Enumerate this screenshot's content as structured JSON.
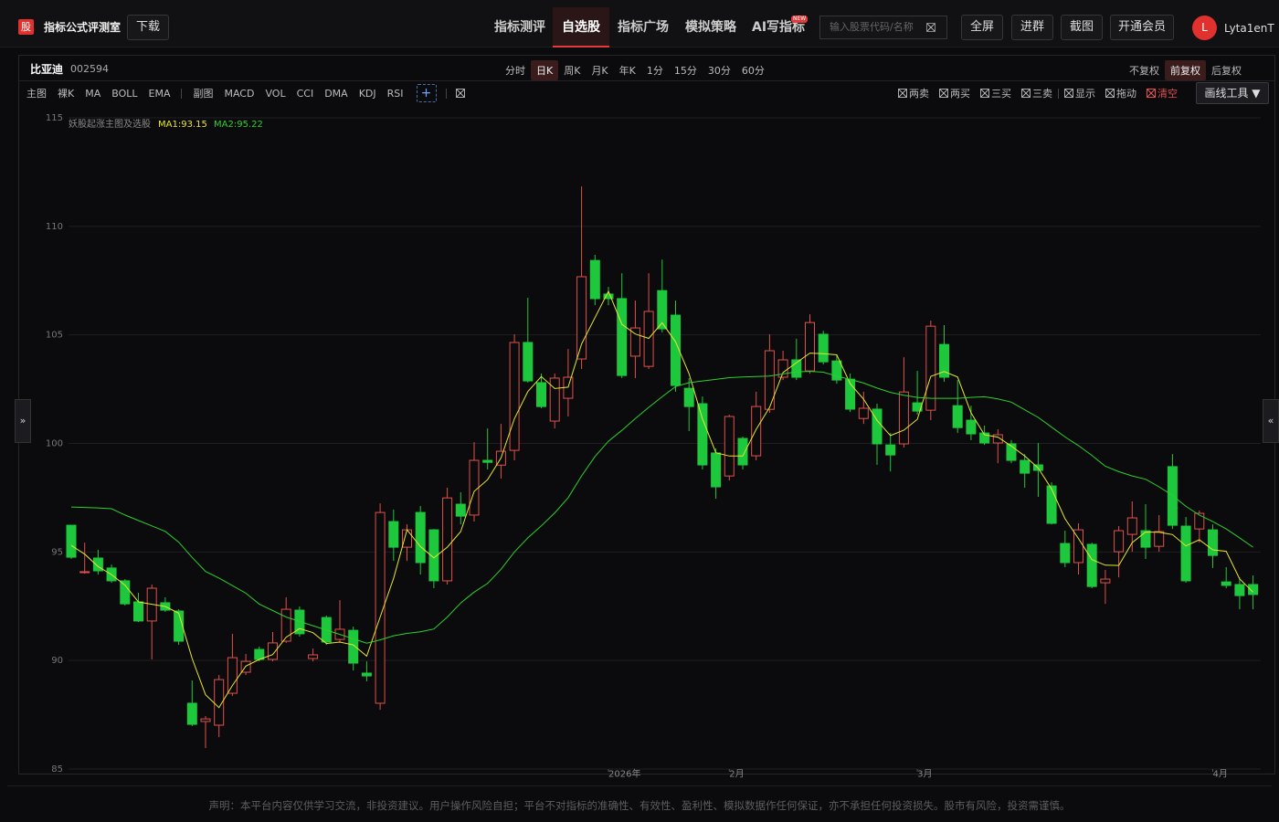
{
  "header": {
    "logo": "股",
    "title": "指标公式评测室",
    "download": "下载",
    "nav": [
      "指标测评",
      "自选股",
      "指标广场",
      "模拟策略",
      "AI写指标"
    ],
    "nav_badge": "NEW",
    "search_placeholder": "输入股票代码/名称",
    "buttons": [
      "全屏",
      "进群",
      "截图",
      "开通会员"
    ],
    "avatar": "L",
    "username": "Lyta1enT"
  },
  "stock": {
    "name": "比亚迪",
    "code": "002594",
    "periods": [
      "分时",
      "日K",
      "周K",
      "月K",
      "年K",
      "1分",
      "15分",
      "30分",
      "60分"
    ],
    "adjust": [
      "不复权",
      "前复权",
      "后复权"
    ]
  },
  "toolbar": {
    "main": [
      "主图",
      "裸K",
      "MA",
      "BOLL",
      "EMA"
    ],
    "sub": [
      "副图",
      "MACD",
      "VOL",
      "CCI",
      "DMA",
      "KDJ",
      "RSI"
    ],
    "add": "+",
    "tools": [
      "两卖",
      "两买",
      "三买",
      "三卖",
      "显示",
      "拖动",
      "清空"
    ],
    "draw_tool": "画线工具 ▼"
  },
  "side": [
    "»",
    "«"
  ],
  "chart_data": {
    "type": "candlestick",
    "indicator": "妖股起涨主图及选股",
    "up_color": "#e0514a",
    "down_color": "#1ec83c",
    "grid": true,
    "ylim": [
      85,
      115
    ],
    "yticks": [
      85,
      90,
      95,
      100,
      105,
      110,
      115
    ],
    "xlim": [
      0,
      88
    ],
    "xticks": [
      {
        "value": 40,
        "label": "2026年"
      },
      {
        "value": 49,
        "label": "2月"
      },
      {
        "value": 63,
        "label": "3月"
      },
      {
        "value": 85,
        "label": "4月"
      }
    ],
    "open": [
      96.23,
      94.09,
      94.72,
      94.26,
      93.67,
      92.7,
      91.82,
      92.66,
      92.28,
      88.03,
      87.19,
      87.02,
      88.49,
      89.46,
      90.51,
      90.05,
      90.89,
      92.32,
      90.09,
      91.98,
      90.97,
      91.39,
      89.42,
      88.03,
      96.4,
      95.22,
      96.82,
      96.02,
      93.67,
      97.2,
      96.7,
      99.22,
      99.0,
      99.68,
      104.65,
      102.8,
      101.03,
      102.08,
      103.89,
      108.43,
      106.88,
      106.67,
      104.02,
      103.55,
      107.04,
      105.91,
      102.54,
      101.83,
      99.56,
      98.5,
      100.23,
      99.43,
      101.57,
      103.05,
      103.85,
      103.34,
      105.03,
      103.8,
      102.96,
      101.15,
      101.58,
      99.93,
      99.98,
      101.87,
      101.53,
      104.56,
      101.74,
      101.07,
      100.48,
      100.02,
      99.98,
      99.22,
      99.01,
      98.04,
      95.39,
      94.51,
      95.35,
      93.58,
      95.01,
      95.81,
      95.98,
      95.26,
      98.93,
      96.19,
      96.06,
      96.02,
      93.62,
      93.5,
      93.5
    ],
    "high": [
      96.23,
      95.43,
      95.1,
      94.42,
      93.75,
      93.12,
      93.5,
      92.91,
      92.36,
      89.08,
      87.44,
      89.33,
      91.23,
      90.3,
      90.64,
      91.31,
      92.91,
      92.49,
      90.55,
      92.07,
      92.78,
      91.56,
      89.96,
      97.24,
      96.95,
      96.27,
      97.12,
      96.06,
      97.96,
      97.75,
      100.06,
      100.69,
      100.9,
      105.03,
      106.71,
      103.22,
      103.22,
      104.35,
      111.84,
      108.69,
      107.21,
      107.84,
      106.58,
      107.84,
      108.47,
      106.58,
      103.01,
      102.16,
      99.77,
      101.32,
      100.31,
      102.38,
      105.03,
      104.27,
      104.82,
      105.95,
      105.19,
      104.1,
      103.22,
      102.38,
      101.83,
      100.48,
      103.97,
      103.34,
      105.66,
      105.45,
      102.92,
      101.74,
      100.82,
      100.65,
      100.15,
      99.51,
      100.02,
      98.21,
      95.98,
      96.32,
      95.43,
      94.17,
      96.19,
      97.33,
      97.2,
      96.7,
      99.51,
      96.61,
      96.91,
      96.27,
      94.3,
      93.83,
      93.92
    ],
    "low": [
      94.68,
      94.0,
      93.96,
      93.58,
      92.53,
      91.77,
      90.05,
      92.24,
      90.72,
      86.98,
      85.97,
      86.47,
      88.37,
      89.33,
      89.96,
      89.96,
      90.81,
      91.1,
      89.96,
      90.72,
      90.81,
      89.54,
      89.04,
      87.73,
      94.59,
      94.59,
      93.96,
      93.33,
      93.5,
      96.27,
      96.4,
      98.8,
      98.38,
      99.22,
      102.8,
      101.62,
      100.69,
      101.24,
      103.43,
      106.37,
      106.37,
      103.01,
      103.01,
      103.43,
      105.11,
      102.38,
      100.57,
      98.8,
      97.45,
      98.29,
      98.8,
      99.22,
      101.41,
      102.92,
      102.92,
      103.22,
      103.64,
      102.75,
      101.45,
      100.9,
      99.01,
      98.71,
      99.81,
      101.32,
      101.07,
      102.84,
      100.48,
      100.15,
      99.93,
      99.09,
      99.09,
      97.96,
      97.54,
      96.27,
      94.3,
      93.96,
      93.33,
      92.61,
      93.83,
      95.01,
      94.68,
      95.01,
      96.06,
      93.58,
      95.43,
      94.26,
      93.33,
      92.36,
      92.36
    ],
    "close": [
      94.76,
      94.09,
      94.13,
      93.67,
      92.61,
      91.82,
      93.33,
      92.32,
      90.89,
      87.06,
      87.31,
      89.12,
      90.13,
      89.96,
      90.05,
      90.81,
      92.36,
      91.23,
      90.26,
      90.85,
      91.44,
      89.88,
      89.29,
      96.82,
      95.22,
      96.02,
      94.51,
      93.67,
      97.49,
      96.65,
      99.22,
      99.13,
      99.64,
      104.65,
      102.88,
      101.7,
      103.01,
      103.05,
      107.68,
      106.67,
      106.67,
      103.13,
      105.32,
      106.08,
      105.28,
      102.67,
      101.7,
      99.01,
      98.0,
      101.24,
      99.01,
      101.7,
      104.27,
      103.85,
      103.05,
      105.57,
      103.76,
      102.92,
      101.58,
      101.62,
      99.98,
      99.47,
      102.37,
      101.49,
      105.4,
      103.05,
      100.73,
      100.44,
      100.02,
      100.4,
      99.22,
      98.63,
      98.76,
      96.32,
      94.51,
      96.02,
      93.41,
      93.75,
      95.98,
      96.57,
      95.22,
      95.94,
      96.23,
      93.67,
      96.78,
      94.84,
      93.46,
      92.99,
      93.04
    ],
    "series": [
      {
        "name": "MA1:93.15",
        "color": "#e6e62e",
        "values": [
          95.3,
          94.9,
          94.33,
          93.96,
          93.47,
          92.7,
          92.59,
          92.49,
          92.18,
          90.09,
          88.42,
          87.83,
          88.85,
          89.74,
          90.05,
          90.27,
          91.07,
          91.47,
          91.28,
          90.78,
          90.85,
          90.72,
          90.2,
          92.0,
          93.78,
          96.02,
          95.25,
          94.73,
          95.22,
          95.94,
          97.79,
          98.33,
          99.33,
          101.14,
          102.39,
          103.08,
          102.53,
          102.59,
          104.58,
          105.8,
          107.01,
          105.49,
          105.04,
          104.84,
          105.56,
          104.68,
          103.22,
          101.13,
          99.57,
          99.42,
          99.42,
          100.65,
          101.66,
          103.27,
          103.72,
          104.16,
          104.13,
          104.08,
          102.75,
          102.04,
          101.06,
          100.36,
          100.61,
          101.11,
          103.09,
          103.31,
          103.06,
          101.41,
          100.4,
          100.29,
          99.88,
          99.42,
          98.87,
          97.9,
          96.53,
          95.62,
          94.65,
          94.39,
          94.38,
          95.43,
          95.92,
          95.91,
          95.8,
          95.28,
          95.56,
          95.1,
          95.03,
          93.76,
          93.15
        ]
      },
      {
        "name": "MA2:95.22",
        "color": "#2bd12b",
        "values": [
          97.07,
          97.05,
          97.03,
          96.99,
          96.7,
          96.45,
          96.2,
          95.95,
          95.45,
          94.75,
          94.1,
          93.8,
          93.45,
          93.1,
          92.6,
          92.3,
          92.0,
          91.8,
          91.6,
          91.4,
          91.2,
          91.0,
          90.8,
          90.95,
          91.14,
          91.25,
          91.32,
          91.45,
          92.0,
          92.65,
          93.15,
          93.55,
          94.2,
          95.0,
          95.65,
          96.2,
          96.8,
          97.5,
          98.5,
          99.4,
          100.1,
          100.6,
          101.15,
          101.66,
          102.15,
          102.62,
          102.8,
          102.88,
          102.95,
          103.03,
          103.06,
          103.08,
          103.1,
          103.2,
          103.3,
          103.32,
          103.28,
          103.1,
          102.95,
          102.78,
          102.55,
          102.35,
          102.22,
          102.12,
          102.08,
          102.08,
          102.08,
          102.12,
          102.15,
          102.05,
          101.9,
          101.55,
          101.2,
          100.75,
          100.3,
          99.9,
          99.45,
          98.95,
          98.7,
          98.5,
          98.35,
          98.0,
          97.6,
          97.1,
          96.7,
          96.4,
          96.06,
          95.65,
          95.22
        ]
      }
    ]
  },
  "footer": "声明：本平台内容仅供学习交流，非投资建议。用户操作风险自担；平台不对指标的准确性、有效性、盈利性、模拟数据作任何保证，亦不承担任何投资损失。股市有风险，投资需谨慎。"
}
